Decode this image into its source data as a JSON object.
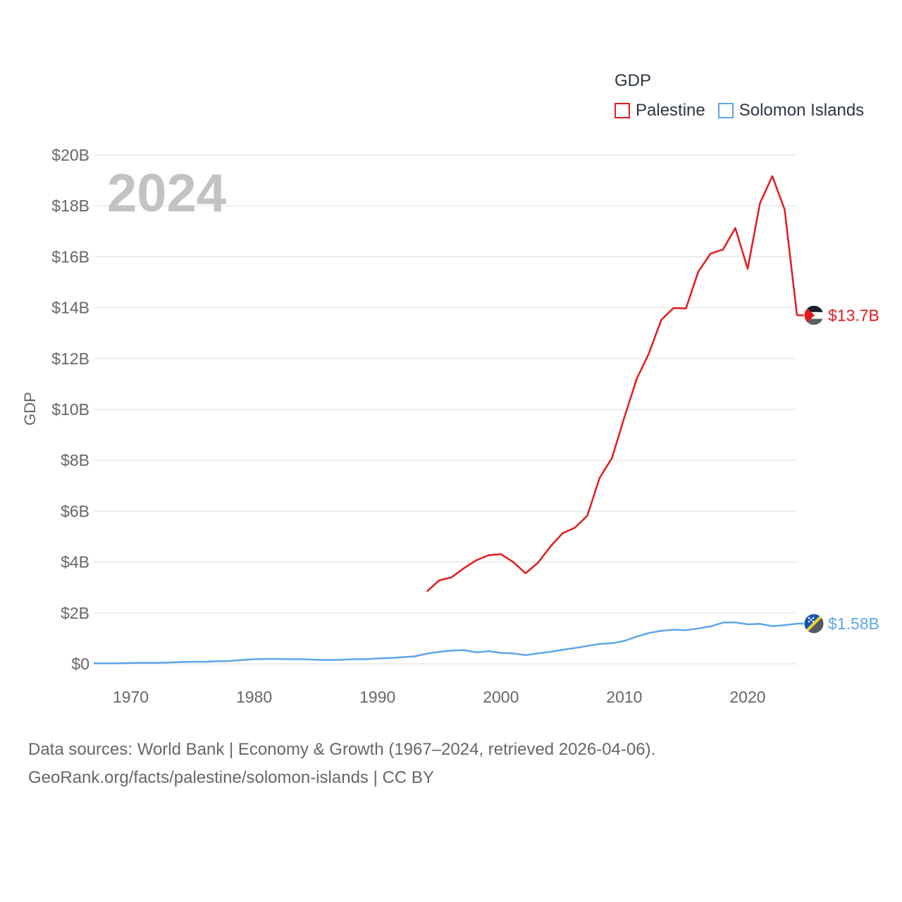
{
  "legend": {
    "title": "GDP",
    "items": [
      {
        "name": "Palestine",
        "color": "#e31a1c"
      },
      {
        "name": "Solomon Islands",
        "color": "#5da5e8"
      }
    ]
  },
  "year_overlay": "2024",
  "source": {
    "line1": "Data sources: World Bank | Economy & Growth (1967–2024, retrieved 2026-04-06).",
    "line2": "GeoRank.org/facts/palestine/solomon-islands | CC BY"
  },
  "chart_data": {
    "type": "line",
    "title": "GDP",
    "ylabel": "GDP",
    "xlabel": "",
    "xlim": [
      1967,
      2024
    ],
    "ylim": [
      0,
      20
    ],
    "y_unit": "billion USD",
    "x_ticks": [
      1970,
      1980,
      1990,
      2000,
      2010,
      2020
    ],
    "x_tick_labels": [
      "1970",
      "1980",
      "1990",
      "2000",
      "2010",
      "2020"
    ],
    "y_ticks": [
      0,
      2,
      4,
      6,
      8,
      10,
      12,
      14,
      16,
      18,
      20
    ],
    "y_tick_labels": [
      "$0",
      "$2B",
      "$4B",
      "$6B",
      "$8B",
      "$10B",
      "$12B",
      "$14B",
      "$16B",
      "$18B",
      "$20B"
    ],
    "grid": true,
    "series": [
      {
        "name": "Palestine",
        "color": "#e31a1c",
        "end_label": "$13.7B",
        "x": [
          1994,
          1995,
          1996,
          1997,
          1998,
          1999,
          2000,
          2001,
          2002,
          2003,
          2004,
          2005,
          2006,
          2007,
          2008,
          2009,
          2010,
          2011,
          2012,
          2013,
          2014,
          2015,
          2016,
          2017,
          2018,
          2019,
          2020,
          2021,
          2022,
          2023,
          2024
        ],
        "values": [
          2.84,
          3.28,
          3.4,
          3.76,
          4.07,
          4.27,
          4.31,
          4.0,
          3.56,
          3.97,
          4.6,
          5.13,
          5.35,
          5.82,
          7.31,
          8.09,
          9.68,
          11.19,
          12.21,
          13.52,
          13.99,
          13.97,
          15.41,
          16.13,
          16.28,
          17.13,
          15.53,
          18.11,
          19.17,
          17.85,
          13.7
        ]
      },
      {
        "name": "Solomon Islands",
        "color": "#5da5e8",
        "end_label": "$1.58B",
        "x": [
          1967,
          1968,
          1969,
          1970,
          1971,
          1972,
          1973,
          1974,
          1975,
          1976,
          1977,
          1978,
          1979,
          1980,
          1981,
          1982,
          1983,
          1984,
          1985,
          1986,
          1987,
          1988,
          1989,
          1990,
          1991,
          1992,
          1993,
          1994,
          1995,
          1996,
          1997,
          1998,
          1999,
          2000,
          2001,
          2002,
          2003,
          2004,
          2005,
          2006,
          2007,
          2008,
          2009,
          2010,
          2011,
          2012,
          2013,
          2014,
          2015,
          2016,
          2017,
          2018,
          2019,
          2020,
          2021,
          2022,
          2023,
          2024
        ],
        "values": [
          0.02,
          0.02,
          0.02,
          0.03,
          0.04,
          0.04,
          0.05,
          0.07,
          0.08,
          0.08,
          0.1,
          0.11,
          0.15,
          0.18,
          0.19,
          0.19,
          0.18,
          0.18,
          0.16,
          0.15,
          0.16,
          0.18,
          0.18,
          0.21,
          0.23,
          0.26,
          0.29,
          0.4,
          0.47,
          0.52,
          0.54,
          0.45,
          0.5,
          0.43,
          0.41,
          0.34,
          0.41,
          0.47,
          0.55,
          0.62,
          0.7,
          0.78,
          0.81,
          0.9,
          1.07,
          1.21,
          1.3,
          1.34,
          1.32,
          1.39,
          1.47,
          1.62,
          1.63,
          1.55,
          1.57,
          1.48,
          1.52,
          1.58
        ]
      }
    ]
  }
}
